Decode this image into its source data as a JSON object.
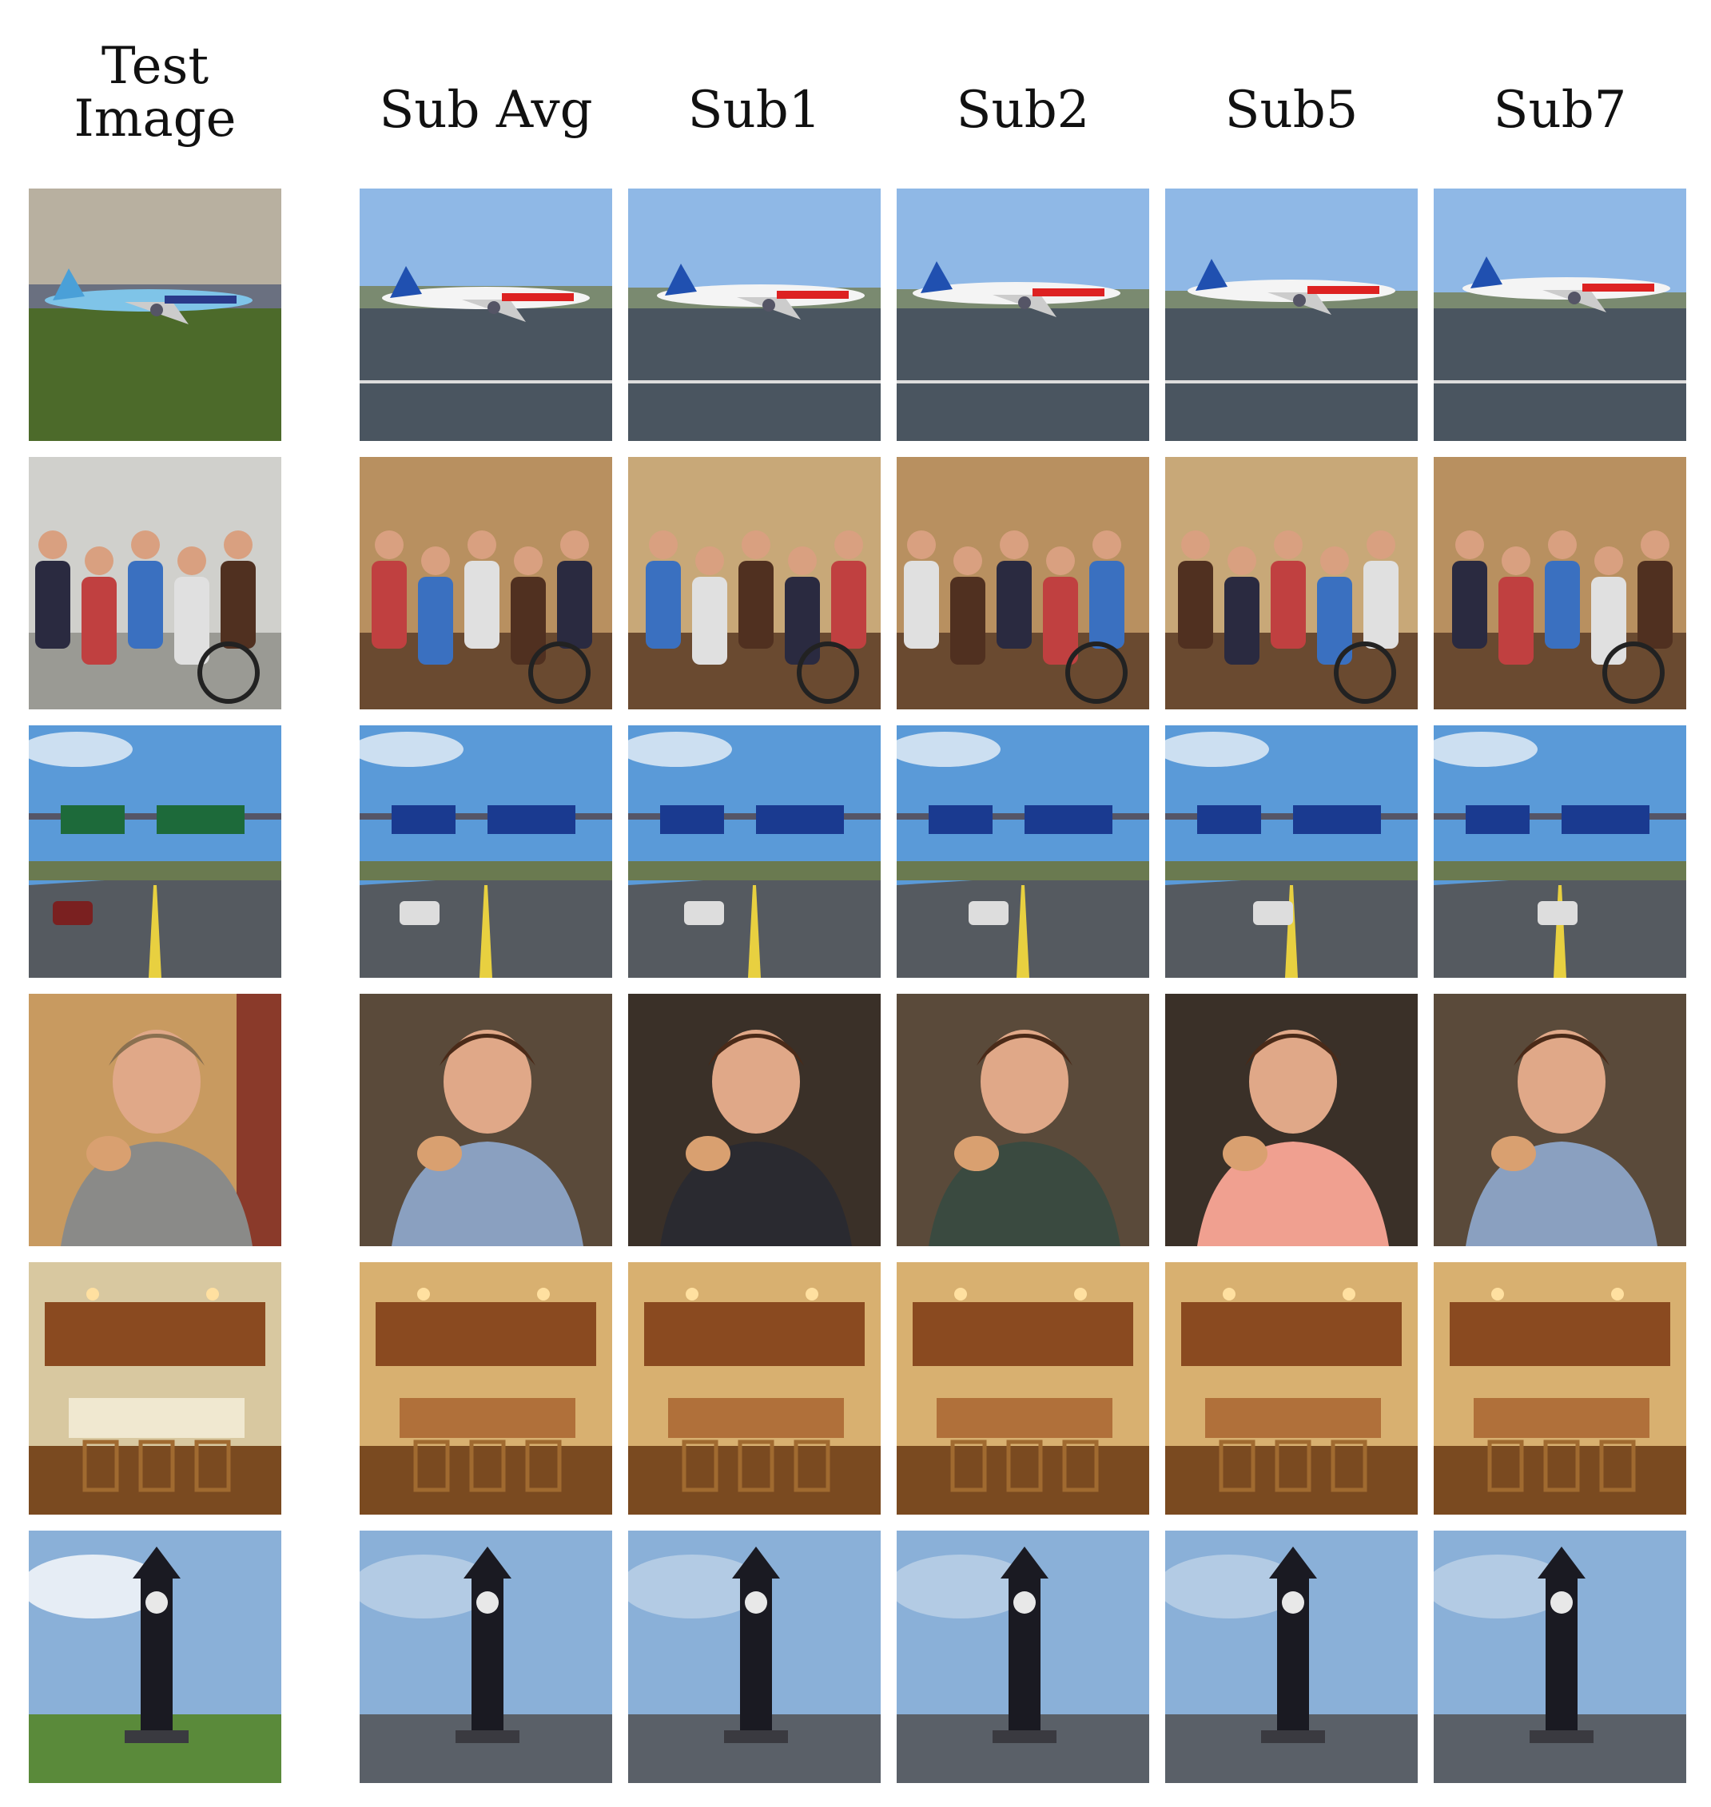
{
  "header": {
    "test_line1": "Test",
    "test_line2": "Image",
    "columns": [
      "Sub Avg",
      "Sub1",
      "Sub2",
      "Sub5",
      "Sub7"
    ]
  },
  "rows": [
    {
      "id": "airplane",
      "sky": "#8fb8e6",
      "ground": "#4a5560",
      "accent": "#d22"
    },
    {
      "id": "people-wheelchair",
      "sky": "#c8a070",
      "ground": "#6a4a30",
      "accent": "#2a6cc0"
    },
    {
      "id": "highway-sign",
      "sky": "#5a9ad8",
      "ground": "#555a60",
      "accent": "#1d6a3a"
    },
    {
      "id": "person-eating",
      "sky": "#3a2a20",
      "ground": "#1a1410",
      "accent": "#d9a070"
    },
    {
      "id": "kitchen",
      "sky": "#d8b070",
      "ground": "#7a4a20",
      "accent": "#b06a30"
    },
    {
      "id": "clock-tower",
      "sky": "#8ab0d8",
      "ground": "#6a7a5a",
      "accent": "#1a1a22"
    }
  ]
}
